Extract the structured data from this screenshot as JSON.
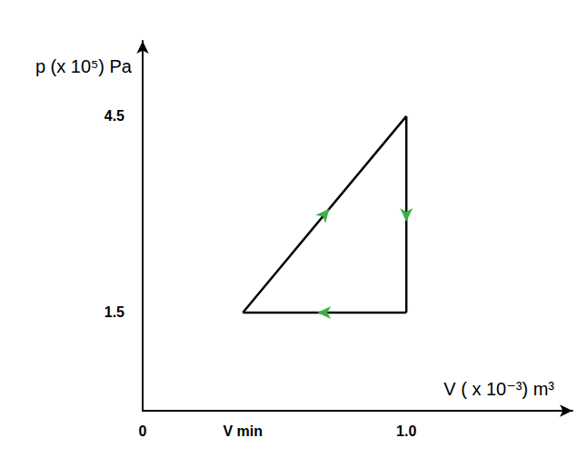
{
  "chart_data": {
    "type": "line",
    "x_label": "V ( x 10⁻³) m³",
    "y_label": "p (x 10⁵) Pa",
    "x": [
      0.38,
      1.0,
      1.0,
      0.38
    ],
    "values": [
      1.5,
      4.5,
      1.5,
      1.5
    ],
    "color": "#000000",
    "marker": "arrow",
    "line_style": "solid",
    "xlim": [
      0,
      1.63
    ],
    "ylim": [
      0,
      5.65
    ],
    "xticks": [
      0,
      {
        "value": 0.38,
        "label": "V min"
      },
      {
        "value": 1.0,
        "label": "1.0"
      }
    ],
    "yticks": [
      1.5,
      4.5
    ],
    "grid": false
  }
}
